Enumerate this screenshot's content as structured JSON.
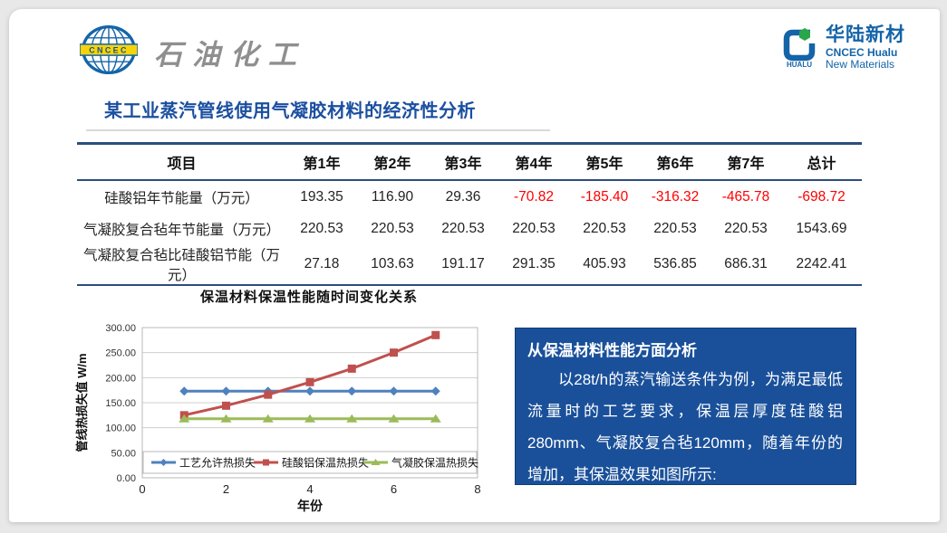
{
  "header": {
    "cncec_logo_text": "CNCEC",
    "petro_label": "石油化工",
    "hualu": {
      "icon_text": "HUALU",
      "name_cn": "华陆新材",
      "name_en_line1": "CNCEC Hualu",
      "name_en_line2": "New Materials"
    }
  },
  "title": "某工业蒸汽管线使用气凝胶材料的经济性分析",
  "table": {
    "columns": [
      "项目",
      "第1年",
      "第2年",
      "第3年",
      "第4年",
      "第5年",
      "第6年",
      "第7年",
      "总计"
    ],
    "rows": [
      {
        "label": "硅酸铝年节能量（万元）",
        "values": [
          "193.35",
          "116.90",
          "29.36",
          "-70.82",
          "-185.40",
          "-316.32",
          "-465.78",
          "-698.72"
        ]
      },
      {
        "label": "气凝胶复合毡年节能量（万元）",
        "values": [
          "220.53",
          "220.53",
          "220.53",
          "220.53",
          "220.53",
          "220.53",
          "220.53",
          "1543.69"
        ]
      },
      {
        "label": "气凝胶复合毡比硅酸铝节能（万元）",
        "values": [
          "27.18",
          "103.63",
          "191.17",
          "291.35",
          "405.93",
          "536.85",
          "686.31",
          "2242.41"
        ]
      }
    ],
    "negative_color": "#ff0000"
  },
  "chart_data": {
    "type": "line",
    "title": "保温材料保温性能随时间变化关系",
    "xlabel": "年份",
    "ylabel": "管线热损失值 W/m",
    "x": [
      1,
      2,
      3,
      4,
      5,
      6,
      7
    ],
    "xlim": [
      0,
      8
    ],
    "ylim": [
      0,
      300
    ],
    "xticks": [
      0,
      2,
      4,
      6,
      8
    ],
    "ytick_step": 50,
    "grid": true,
    "legend_position": "bottom-inside",
    "series": [
      {
        "name": "工艺允许热损失",
        "color": "#4f81bd",
        "marker": "diamond",
        "values": [
          173,
          173,
          173,
          173,
          173,
          173,
          173
        ]
      },
      {
        "name": "硅酸铝保温热损失",
        "color": "#c0504d",
        "marker": "square",
        "values": [
          125,
          144,
          166,
          191,
          218,
          250,
          285
        ]
      },
      {
        "name": "气凝胶保温热损失",
        "color": "#9bbb59",
        "marker": "triangle",
        "values": [
          118,
          118,
          118,
          118,
          118,
          118,
          118
        ]
      }
    ]
  },
  "info_box": {
    "bg_color": "#1a509a",
    "heading": "从保温材料性能方面分析",
    "body": "以28t/h的蒸汽输送条件为例，为满足最低流量时的工艺要求，保温层厚度硅酸铝280mm、气凝胶复合毡120mm，随着年份的增加，其保温效果如图所示:"
  }
}
